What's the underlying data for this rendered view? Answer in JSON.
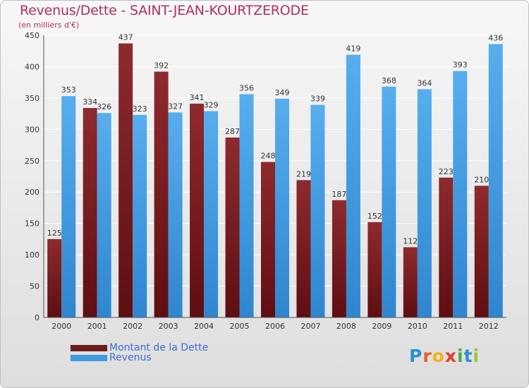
{
  "header": {
    "title": "Revenus/Dette - SAINT-JEAN-KOURTZERODE",
    "subtitle": "(en milliers d'€)"
  },
  "legend": {
    "debt_label": "Montant de la Dette",
    "revenue_label": "Revenus"
  },
  "logo": {
    "text": "Proxiti"
  },
  "colors": {
    "debt": "#7a1f22",
    "revenue": "#3f9ae0",
    "title": "#b0305a",
    "legend_text": "#3d6bd6"
  },
  "chart_data": {
    "type": "bar",
    "categories": [
      "2000",
      "2001",
      "2002",
      "2003",
      "2004",
      "2005",
      "2006",
      "2007",
      "2008",
      "2009",
      "2010",
      "2011",
      "2012"
    ],
    "series": [
      {
        "name": "Montant de la Dette",
        "values": [
          125,
          334,
          437,
          392,
          341,
          287,
          248,
          219,
          187,
          152,
          112,
          223,
          210
        ]
      },
      {
        "name": "Revenus",
        "values": [
          353,
          326,
          323,
          327,
          329,
          356,
          349,
          339,
          419,
          368,
          364,
          393,
          436
        ]
      }
    ],
    "title": "Revenus/Dette - SAINT-JEAN-KOURTZERODE",
    "ylim": [
      0,
      450
    ],
    "yticks": [
      0,
      50,
      100,
      150,
      200,
      250,
      300,
      350,
      400,
      450
    ],
    "grid": true,
    "legend_position": "bottom-left"
  }
}
